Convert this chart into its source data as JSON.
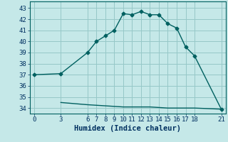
{
  "xlabel": "Humidex (Indice chaleur)",
  "bg_color": "#c5e8e8",
  "grid_color": "#96c8c8",
  "line_color": "#006060",
  "upper_x": [
    0,
    3,
    6,
    7,
    8,
    9,
    10,
    11,
    12,
    13,
    14,
    15,
    16,
    17,
    18,
    21
  ],
  "upper_y": [
    37.0,
    37.1,
    39.0,
    40.0,
    40.5,
    41.0,
    42.5,
    42.4,
    42.7,
    42.4,
    42.4,
    41.6,
    41.2,
    39.5,
    38.7,
    33.9
  ],
  "lower_x": [
    3,
    6,
    7,
    8,
    9,
    10,
    11,
    12,
    13,
    14,
    15,
    16,
    17,
    18,
    21
  ],
  "lower_y": [
    34.5,
    34.3,
    34.25,
    34.2,
    34.15,
    34.1,
    34.1,
    34.1,
    34.1,
    34.05,
    34.0,
    34.0,
    34.0,
    34.0,
    33.9
  ],
  "xticks": [
    0,
    3,
    6,
    7,
    8,
    9,
    10,
    11,
    12,
    13,
    14,
    15,
    16,
    17,
    18,
    21
  ],
  "yticks": [
    34,
    35,
    36,
    37,
    38,
    39,
    40,
    41,
    42,
    43
  ],
  "xlim": [
    -0.5,
    21.5
  ],
  "ylim": [
    33.5,
    43.6
  ],
  "marker": "D",
  "markersize": 2.5,
  "linewidth": 1.0,
  "tick_fontsize": 6.5,
  "xlabel_fontsize": 7.5
}
